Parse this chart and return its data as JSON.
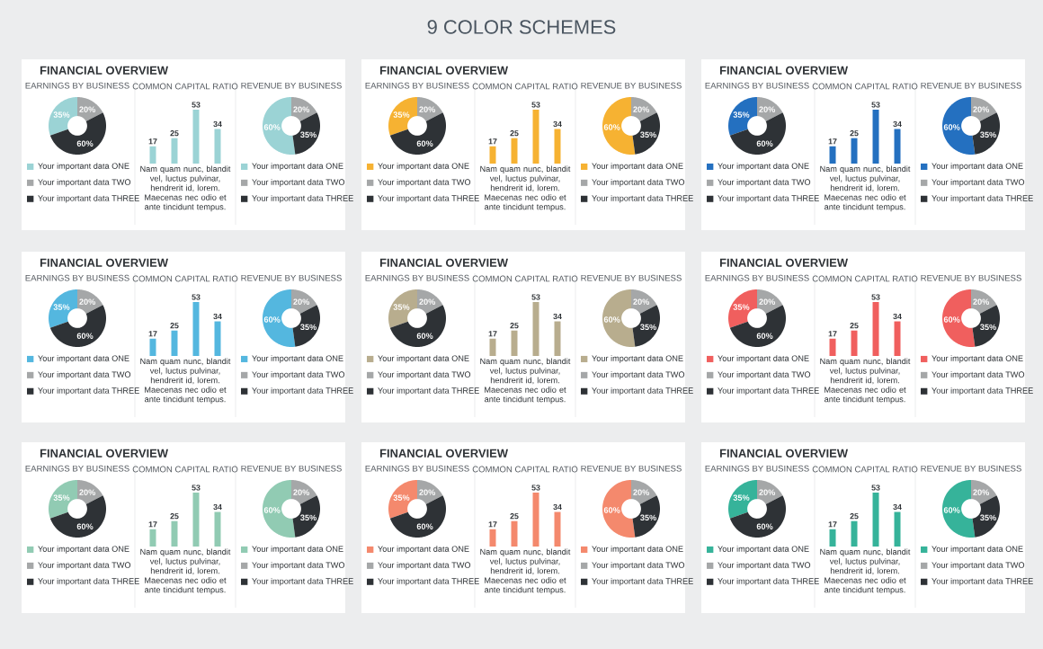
{
  "chart_data": [
    {
      "type": "donut",
      "title": "FINANCIAL OVERVIEW",
      "subtitle": "EARNINGS BY BUSINESS",
      "annotations": [
        "9 COLOR SCHEMES"
      ],
      "categories": [
        "Your important data ONE",
        "Your important data TWO",
        "Your important data THREE"
      ],
      "values": [
        35,
        20,
        60
      ],
      "value_labels": [
        "35%",
        "20%",
        "60%"
      ],
      "colors": [
        "#9bd3d5",
        "#a5a7a8",
        "#2e3236"
      ],
      "legend": "bottom"
    },
    {
      "type": "bar",
      "title": "COMMON CAPITAL RATIO",
      "categories": [
        null,
        null,
        null,
        null
      ],
      "values": [
        17,
        25,
        53,
        34
      ],
      "color": "#9bd3d5",
      "data_labels": true,
      "annotations": [
        "Nam quam nunc, blandit vel, luctus pulvinar, hendrerit id, lorem. Maecenas nec odio et ante tincidunt tempus."
      ]
    },
    {
      "type": "donut",
      "subtitle": "REVENUE BY BUSINESS",
      "categories": [
        "Your important data ONE",
        "Your important data TWO",
        "Your important data THREE"
      ],
      "values": [
        60,
        20,
        35
      ],
      "value_labels": [
        "60%",
        "20%",
        "35%"
      ],
      "colors": [
        "#9bd3d5",
        "#a5a7a8",
        "#2e3236"
      ],
      "legend": "bottom"
    },
    {
      "type": "donut",
      "title": "FINANCIAL OVERVIEW",
      "subtitle": "EARNINGS BY BUSINESS",
      "categories": [
        "Your important data ONE",
        "Your important data TWO",
        "Your important data THREE"
      ],
      "values": [
        35,
        20,
        60
      ],
      "value_labels": [
        "35%",
        "20%",
        "60%"
      ],
      "colors": [
        "#f6b232",
        "#a5a7a8",
        "#2e3236"
      ],
      "legend": "bottom"
    },
    {
      "type": "bar",
      "title": "COMMON CAPITAL RATIO",
      "categories": [
        null,
        null,
        null,
        null
      ],
      "values": [
        17,
        25,
        53,
        34
      ],
      "color": "#f6b232",
      "data_labels": true,
      "annotations": [
        "Nam quam nunc, blandit vel, luctus pulvinar, hendrerit id, lorem. Maecenas nec odio et ante tincidunt tempus."
      ]
    },
    {
      "type": "donut",
      "subtitle": "REVENUE BY BUSINESS",
      "categories": [
        "Your important data ONE",
        "Your important data TWO",
        "Your important data THREE"
      ],
      "values": [
        60,
        20,
        35
      ],
      "value_labels": [
        "60%",
        "20%",
        "35%"
      ],
      "colors": [
        "#f6b232",
        "#a5a7a8",
        "#2e3236"
      ],
      "legend": "bottom"
    },
    {
      "type": "donut",
      "title": "FINANCIAL OVERVIEW",
      "subtitle": "EARNINGS BY BUSINESS",
      "categories": [
        "Your important data ONE",
        "Your important data TWO",
        "Your important data THREE"
      ],
      "values": [
        35,
        20,
        60
      ],
      "value_labels": [
        "35%",
        "20%",
        "60%"
      ],
      "colors": [
        "#2470c0",
        "#a5a7a8",
        "#2e3236"
      ],
      "legend": "bottom"
    },
    {
      "type": "bar",
      "title": "COMMON CAPITAL RATIO",
      "categories": [
        null,
        null,
        null,
        null
      ],
      "values": [
        17,
        25,
        53,
        34
      ],
      "color": "#2470c0",
      "data_labels": true,
      "annotations": [
        "Nam quam nunc, blandit vel, luctus pulvinar, hendrerit id, lorem. Maecenas nec odio et ante tincidunt tempus."
      ]
    },
    {
      "type": "donut",
      "subtitle": "REVENUE BY BUSINESS",
      "categories": [
        "Your important data ONE",
        "Your important data TWO",
        "Your important data THREE"
      ],
      "values": [
        60,
        20,
        35
      ],
      "value_labels": [
        "60%",
        "20%",
        "35%"
      ],
      "colors": [
        "#2470c0",
        "#a5a7a8",
        "#2e3236"
      ],
      "legend": "bottom"
    },
    {
      "type": "donut",
      "title": "FINANCIAL OVERVIEW",
      "subtitle": "EARNINGS BY BUSINESS",
      "categories": [
        "Your important data ONE",
        "Your important data TWO",
        "Your important data THREE"
      ],
      "values": [
        35,
        20,
        60
      ],
      "value_labels": [
        "35%",
        "20%",
        "60%"
      ],
      "colors": [
        "#54b7df",
        "#a5a7a8",
        "#2e3236"
      ],
      "legend": "bottom"
    },
    {
      "type": "bar",
      "title": "COMMON CAPITAL RATIO",
      "categories": [
        null,
        null,
        null,
        null
      ],
      "values": [
        17,
        25,
        53,
        34
      ],
      "color": "#54b7df",
      "data_labels": true,
      "annotations": [
        "Nam quam nunc, blandit vel, luctus pulvinar, hendrerit id, lorem. Maecenas nec odio et ante tincidunt tempus."
      ]
    },
    {
      "type": "donut",
      "subtitle": "REVENUE BY BUSINESS",
      "categories": [
        "Your important data ONE",
        "Your important data TWO",
        "Your important data THREE"
      ],
      "values": [
        60,
        20,
        35
      ],
      "value_labels": [
        "60%",
        "20%",
        "35%"
      ],
      "colors": [
        "#54b7df",
        "#a5a7a8",
        "#2e3236"
      ],
      "legend": "bottom"
    },
    {
      "type": "donut",
      "title": "FINANCIAL OVERVIEW",
      "subtitle": "EARNINGS BY BUSINESS",
      "categories": [
        "Your important data ONE",
        "Your important data TWO",
        "Your important data THREE"
      ],
      "values": [
        35,
        20,
        60
      ],
      "value_labels": [
        "35%",
        "20%",
        "60%"
      ],
      "colors": [
        "#b8ad8e",
        "#a5a7a8",
        "#2e3236"
      ],
      "legend": "bottom"
    },
    {
      "type": "bar",
      "title": "COMMON CAPITAL RATIO",
      "categories": [
        null,
        null,
        null,
        null
      ],
      "values": [
        17,
        25,
        53,
        34
      ],
      "color": "#b8ad8e",
      "data_labels": true,
      "annotations": [
        "Nam quam nunc, blandit vel, luctus pulvinar, hendrerit id, lorem. Maecenas nec odio et ante tincidunt tempus."
      ]
    },
    {
      "type": "donut",
      "subtitle": "REVENUE BY BUSINESS",
      "categories": [
        "Your important data ONE",
        "Your important data TWO",
        "Your important data THREE"
      ],
      "values": [
        60,
        20,
        35
      ],
      "value_labels": [
        "60%",
        "20%",
        "35%"
      ],
      "colors": [
        "#b8ad8e",
        "#a5a7a8",
        "#2e3236"
      ],
      "legend": "bottom"
    },
    {
      "type": "donut",
      "title": "FINANCIAL OVERVIEW",
      "subtitle": "EARNINGS BY BUSINESS",
      "categories": [
        "Your important data ONE",
        "Your important data TWO",
        "Your important data THREE"
      ],
      "values": [
        35,
        20,
        60
      ],
      "value_labels": [
        "35%",
        "20%",
        "60%"
      ],
      "colors": [
        "#f05f5e",
        "#a5a7a8",
        "#2e3236"
      ],
      "legend": "bottom"
    },
    {
      "type": "bar",
      "title": "COMMON CAPITAL RATIO",
      "categories": [
        null,
        null,
        null,
        null
      ],
      "values": [
        17,
        25,
        53,
        34
      ],
      "color": "#f05f5e",
      "data_labels": true,
      "annotations": [
        "Nam quam nunc, blandit vel, luctus pulvinar, hendrerit id, lorem. Maecenas nec odio et ante tincidunt tempus."
      ]
    },
    {
      "type": "donut",
      "subtitle": "REVENUE BY BUSINESS",
      "categories": [
        "Your important data ONE",
        "Your important data TWO",
        "Your important data THREE"
      ],
      "values": [
        60,
        20,
        35
      ],
      "value_labels": [
        "60%",
        "20%",
        "35%"
      ],
      "colors": [
        "#f05f5e",
        "#a5a7a8",
        "#2e3236"
      ],
      "legend": "bottom"
    },
    {
      "type": "donut",
      "title": "FINANCIAL OVERVIEW",
      "subtitle": "EARNINGS BY BUSINESS",
      "categories": [
        "Your important data ONE",
        "Your important data TWO",
        "Your important data THREE"
      ],
      "values": [
        35,
        20,
        60
      ],
      "value_labels": [
        "35%",
        "20%",
        "60%"
      ],
      "colors": [
        "#91cbb3",
        "#a5a7a8",
        "#2e3236"
      ],
      "legend": "bottom"
    },
    {
      "type": "bar",
      "title": "COMMON CAPITAL RATIO",
      "categories": [
        null,
        null,
        null,
        null
      ],
      "values": [
        17,
        25,
        53,
        34
      ],
      "color": "#91cbb3",
      "data_labels": true,
      "annotations": [
        "Nam quam nunc, blandit vel, luctus pulvinar, hendrerit id, lorem. Maecenas nec odio et ante tincidunt tempus."
      ]
    },
    {
      "type": "donut",
      "subtitle": "REVENUE BY BUSINESS",
      "categories": [
        "Your important data ONE",
        "Your important data TWO",
        "Your important data THREE"
      ],
      "values": [
        60,
        20,
        35
      ],
      "value_labels": [
        "60%",
        "20%",
        "35%"
      ],
      "colors": [
        "#91cbb3",
        "#a5a7a8",
        "#2e3236"
      ],
      "legend": "bottom"
    },
    {
      "type": "donut",
      "title": "FINANCIAL OVERVIEW",
      "subtitle": "EARNINGS BY BUSINESS",
      "categories": [
        "Your important data ONE",
        "Your important data TWO",
        "Your important data THREE"
      ],
      "values": [
        35,
        20,
        60
      ],
      "value_labels": [
        "35%",
        "20%",
        "60%"
      ],
      "colors": [
        "#f4896d",
        "#a5a7a8",
        "#2e3236"
      ],
      "legend": "bottom"
    },
    {
      "type": "bar",
      "title": "COMMON CAPITAL RATIO",
      "categories": [
        null,
        null,
        null,
        null
      ],
      "values": [
        17,
        25,
        53,
        34
      ],
      "color": "#f4896d",
      "data_labels": true,
      "annotations": [
        "Nam quam nunc, blandit vel, luctus pulvinar, hendrerit id, lorem. Maecenas nec odio et ante tincidunt tempus."
      ]
    },
    {
      "type": "donut",
      "subtitle": "REVENUE BY BUSINESS",
      "categories": [
        "Your important data ONE",
        "Your important data TWO",
        "Your important data THREE"
      ],
      "values": [
        60,
        20,
        35
      ],
      "value_labels": [
        "60%",
        "20%",
        "35%"
      ],
      "colors": [
        "#f4896d",
        "#a5a7a8",
        "#2e3236"
      ],
      "legend": "bottom"
    },
    {
      "type": "donut",
      "title": "FINANCIAL OVERVIEW",
      "subtitle": "EARNINGS BY BUSINESS",
      "categories": [
        "Your important data ONE",
        "Your important data TWO",
        "Your important data THREE"
      ],
      "values": [
        35,
        20,
        60
      ],
      "value_labels": [
        "35%",
        "20%",
        "60%"
      ],
      "colors": [
        "#36b39a",
        "#a5a7a8",
        "#2e3236"
      ],
      "legend": "bottom"
    },
    {
      "type": "bar",
      "title": "COMMON CAPITAL RATIO",
      "categories": [
        null,
        null,
        null,
        null
      ],
      "values": [
        17,
        25,
        53,
        34
      ],
      "color": "#36b39a",
      "data_labels": true,
      "annotations": [
        "Nam quam nunc, blandit vel, luctus pulvinar, hendrerit id, lorem. Maecenas nec odio et ante tincidunt tempus."
      ]
    },
    {
      "type": "donut",
      "subtitle": "REVENUE BY BUSINESS",
      "categories": [
        "Your important data ONE",
        "Your important data TWO",
        "Your important data THREE"
      ],
      "values": [
        60,
        20,
        35
      ],
      "value_labels": [
        "60%",
        "20%",
        "35%"
      ],
      "colors": [
        "#36b39a",
        "#a5a7a8",
        "#2e3236"
      ],
      "legend": "bottom"
    }
  ]
}
